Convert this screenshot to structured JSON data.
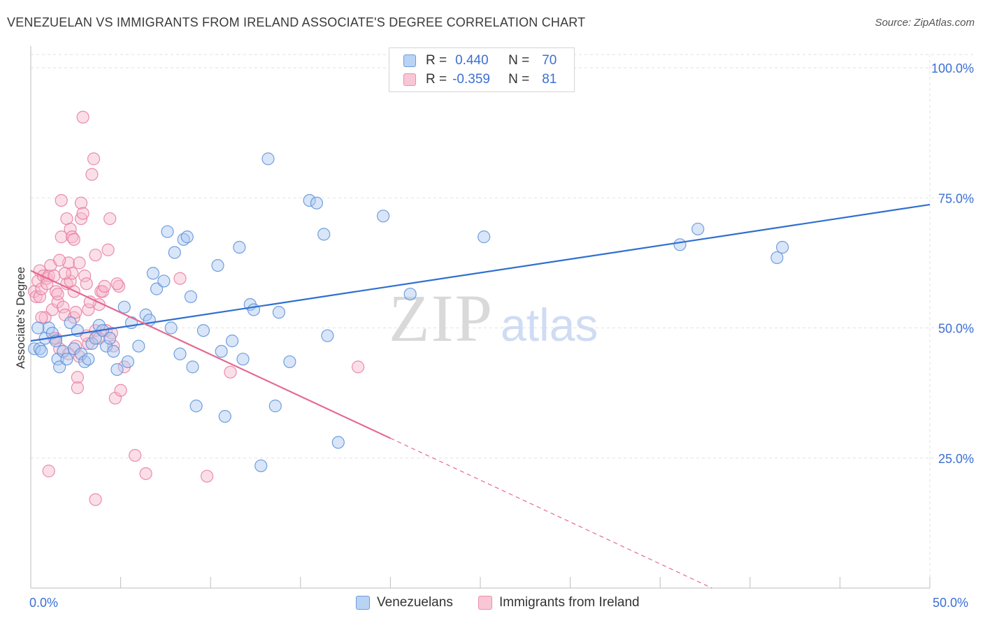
{
  "title": "VENEZUELAN VS IMMIGRANTS FROM IRELAND ASSOCIATE'S DEGREE CORRELATION CHART",
  "source": "Source: ZipAtlas.com",
  "watermark": {
    "zip": "ZIP",
    "atlas": "atlas"
  },
  "legend_top": {
    "r_label": "R =",
    "n_label": "N =",
    "rows": [
      {
        "r": "0.440",
        "n": "70"
      },
      {
        "r": "-0.359",
        "n": "81"
      }
    ]
  },
  "colors": {
    "blue_fill": "#aac8f2",
    "blue_stroke": "#5b8fd6",
    "blue_line": "#2f6fd0",
    "pink_fill": "#f7b8cb",
    "pink_stroke": "#e67a9d",
    "pink_line": "#e56991",
    "accent_text": "#3b6fd4"
  },
  "chart_data": {
    "type": "scatter",
    "title": "VENEZUELAN VS IMMIGRANTS FROM IRELAND ASSOCIATE'S DEGREE CORRELATION CHART",
    "xlabel": "",
    "ylabel": "Associate's Degree",
    "xlim": [
      0,
      50
    ],
    "ylim": [
      0,
      100
    ],
    "x_tick_labels": {
      "left": "0.0%",
      "right": "50.0%"
    },
    "y_ticks": [
      {
        "value": 100,
        "label": "100.0%"
      },
      {
        "value": 75,
        "label": "75.0%"
      },
      {
        "value": 50,
        "label": "50.0%"
      },
      {
        "value": 25,
        "label": "25.0%"
      }
    ],
    "grid": true,
    "legend_placement": "bottom",
    "series": [
      {
        "name": "Venezuelans",
        "r": 0.44,
        "n": 70,
        "trend": {
          "x": [
            0,
            50
          ],
          "y": [
            47.5,
            73.7
          ],
          "solid_to_x": 50
        },
        "points": [
          [
            0.2,
            46
          ],
          [
            0.5,
            46
          ],
          [
            0.8,
            48
          ],
          [
            1.0,
            50
          ],
          [
            1.2,
            49
          ],
          [
            1.4,
            47.5
          ],
          [
            1.5,
            44
          ],
          [
            1.6,
            42.5
          ],
          [
            1.8,
            45.5
          ],
          [
            2.0,
            44
          ],
          [
            2.2,
            51
          ],
          [
            2.4,
            46
          ],
          [
            2.6,
            49.5
          ],
          [
            2.8,
            45
          ],
          [
            3.0,
            43.5
          ],
          [
            3.2,
            44
          ],
          [
            3.4,
            47
          ],
          [
            3.6,
            48
          ],
          [
            3.8,
            50.5
          ],
          [
            4.0,
            49.5
          ],
          [
            4.2,
            46.5
          ],
          [
            4.4,
            48
          ],
          [
            4.6,
            45.5
          ],
          [
            4.8,
            42
          ],
          [
            5.2,
            54
          ],
          [
            5.4,
            43.5
          ],
          [
            5.6,
            51
          ],
          [
            6.0,
            46.5
          ],
          [
            6.4,
            52.5
          ],
          [
            6.6,
            51.5
          ],
          [
            6.8,
            60.5
          ],
          [
            7.0,
            57.5
          ],
          [
            7.4,
            59
          ],
          [
            7.6,
            68.5
          ],
          [
            7.8,
            50
          ],
          [
            8.0,
            64.5
          ],
          [
            8.3,
            45
          ],
          [
            8.5,
            67
          ],
          [
            8.7,
            67.5
          ],
          [
            8.9,
            56
          ],
          [
            9.0,
            42.5
          ],
          [
            9.2,
            35
          ],
          [
            9.6,
            49.5
          ],
          [
            10.4,
            62
          ],
          [
            10.6,
            45.5
          ],
          [
            10.8,
            33
          ],
          [
            11.2,
            47.5
          ],
          [
            11.6,
            65.5
          ],
          [
            11.8,
            44
          ],
          [
            12.2,
            54.5
          ],
          [
            12.4,
            53.5
          ],
          [
            12.8,
            23.5
          ],
          [
            13.2,
            82.5
          ],
          [
            13.6,
            35
          ],
          [
            13.8,
            53
          ],
          [
            14.4,
            43.5
          ],
          [
            15.5,
            74.5
          ],
          [
            15.9,
            74
          ],
          [
            16.3,
            68
          ],
          [
            16.5,
            48.5
          ],
          [
            17.1,
            28
          ],
          [
            19.6,
            71.5
          ],
          [
            21.1,
            56.5
          ],
          [
            25.2,
            67.5
          ],
          [
            36.1,
            66
          ],
          [
            37.1,
            69
          ],
          [
            41.5,
            63.5
          ],
          [
            41.8,
            65.5
          ],
          [
            0.4,
            50
          ],
          [
            0.6,
            45.5
          ]
        ]
      },
      {
        "name": "Immigrants from Ireland",
        "r": -0.359,
        "n": 81,
        "trend": {
          "x": [
            0,
            50
          ],
          "y": [
            61,
            -19.5
          ],
          "solid_to_x": 20,
          "dashed": true
        },
        "points": [
          [
            0.2,
            57
          ],
          [
            0.3,
            56
          ],
          [
            0.4,
            59
          ],
          [
            0.5,
            61
          ],
          [
            0.5,
            56
          ],
          [
            0.6,
            57.5
          ],
          [
            0.7,
            60
          ],
          [
            0.8,
            52
          ],
          [
            0.9,
            59.5
          ],
          [
            1.0,
            60
          ],
          [
            1.1,
            62
          ],
          [
            1.2,
            53.5
          ],
          [
            1.3,
            60
          ],
          [
            1.4,
            57
          ],
          [
            1.4,
            48
          ],
          [
            1.5,
            55
          ],
          [
            1.6,
            46
          ],
          [
            1.7,
            74.5
          ],
          [
            1.7,
            67.5
          ],
          [
            1.8,
            54
          ],
          [
            1.9,
            52.5
          ],
          [
            2.0,
            71
          ],
          [
            2.0,
            58.5
          ],
          [
            2.1,
            62.5
          ],
          [
            2.2,
            69
          ],
          [
            2.3,
            67.5
          ],
          [
            2.4,
            67
          ],
          [
            2.4,
            57
          ],
          [
            2.4,
            52
          ],
          [
            2.5,
            46.5
          ],
          [
            2.6,
            40.5
          ],
          [
            2.6,
            38.5
          ],
          [
            2.7,
            44.5
          ],
          [
            2.8,
            74
          ],
          [
            2.8,
            71
          ],
          [
            2.9,
            72
          ],
          [
            3.0,
            60
          ],
          [
            3.1,
            58.5
          ],
          [
            3.2,
            53.5
          ],
          [
            3.2,
            47
          ],
          [
            3.4,
            79.5
          ],
          [
            3.5,
            82.5
          ],
          [
            3.6,
            64
          ],
          [
            3.6,
            49.5
          ],
          [
            3.8,
            54.5
          ],
          [
            3.8,
            48
          ],
          [
            3.9,
            57
          ],
          [
            4.0,
            57
          ],
          [
            4.1,
            58
          ],
          [
            4.2,
            49.5
          ],
          [
            4.3,
            65
          ],
          [
            4.4,
            71
          ],
          [
            4.6,
            46.5
          ],
          [
            4.7,
            36.5
          ],
          [
            4.9,
            58
          ],
          [
            5.0,
            38
          ],
          [
            5.2,
            42.5
          ],
          [
            5.8,
            25.5
          ],
          [
            6.4,
            22
          ],
          [
            8.3,
            59.5
          ],
          [
            9.8,
            21.5
          ],
          [
            11.1,
            41.5
          ],
          [
            18.2,
            42.5
          ],
          [
            1.0,
            22.5
          ],
          [
            3.6,
            17
          ],
          [
            2.9,
            90.5
          ],
          [
            2.2,
            59
          ],
          [
            2.5,
            53
          ],
          [
            1.5,
            56.5
          ],
          [
            0.6,
            52
          ],
          [
            1.3,
            48
          ],
          [
            3.3,
            55
          ],
          [
            2.7,
            62.5
          ],
          [
            4.8,
            58.5
          ],
          [
            2.3,
            60.5
          ],
          [
            1.6,
            63
          ],
          [
            1.9,
            60.5
          ],
          [
            3.1,
            48.5
          ],
          [
            4.5,
            49
          ],
          [
            0.9,
            58.5
          ],
          [
            2.1,
            45
          ]
        ]
      }
    ]
  },
  "bottom_legend": [
    {
      "label": "Venezuelans"
    },
    {
      "label": "Immigrants from Ireland"
    }
  ]
}
